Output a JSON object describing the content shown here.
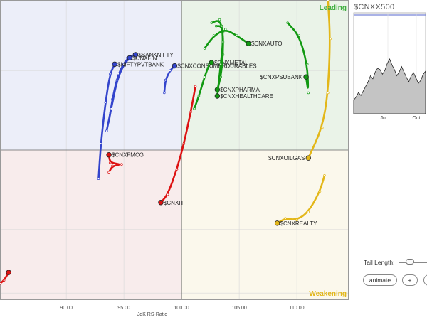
{
  "chart_data": {
    "type": "scatter",
    "xlabel": "JdK RS-Ratio",
    "xlim": [
      84.25,
      114.5
    ],
    "ylim": [
      95.28,
      104.72
    ],
    "x_ticks": [
      "90.00",
      "95.00",
      "100.00",
      "105.00",
      "110.00"
    ],
    "x_tick_values": [
      90,
      95,
      100,
      105,
      110
    ],
    "center": [
      100,
      100
    ],
    "quadrant_labels": {
      "leading": "Leading",
      "weakening": "Weakening"
    },
    "quadrant_colors": {
      "leading": "#eaf3e8",
      "weakening": "#fbf8ec",
      "lagging": "#f8ecec",
      "improving": "#eceef9"
    },
    "series": [
      {
        "name": "$BANKNIFTY",
        "color": "#3344cc",
        "points": [
          [
            93.7,
            100.9
          ],
          [
            94.0,
            101.6
          ],
          [
            94.5,
            102.4
          ],
          [
            95.3,
            102.9
          ],
          [
            96.0,
            103.0
          ]
        ]
      },
      {
        "name": "$CNXFIN",
        "color": "#3344cc",
        "points": [
          [
            93.5,
            100.6
          ],
          [
            93.9,
            101.3
          ],
          [
            94.4,
            102.2
          ],
          [
            95.0,
            102.7
          ],
          [
            95.5,
            102.9
          ]
        ]
      },
      {
        "name": "$NIFTYPVTBANK",
        "color": "#3344cc",
        "points": [
          [
            92.8,
            99.1
          ],
          [
            93.0,
            100.2
          ],
          [
            93.4,
            101.5
          ],
          [
            93.8,
            102.4
          ],
          [
            94.2,
            102.7
          ]
        ]
      },
      {
        "name": "$CNXCONSUMERDURABLES",
        "color": "#3344cc",
        "points": [
          [
            98.5,
            101.8
          ],
          [
            98.6,
            102.2
          ],
          [
            99.0,
            102.5
          ],
          [
            99.4,
            102.65
          ]
        ]
      },
      {
        "name": "$CNXFMCG",
        "color": "#dd1111",
        "points": [
          [
            93.7,
            99.3
          ],
          [
            94.0,
            99.5
          ],
          [
            94.8,
            99.55
          ],
          [
            93.8,
            99.6
          ],
          [
            93.7,
            99.85
          ]
        ]
      },
      {
        "name": "$CNXIT",
        "color": "#dd1111",
        "points": [
          [
            101.2,
            102.0
          ],
          [
            100.8,
            101.2
          ],
          [
            100.2,
            100.2
          ],
          [
            99.6,
            99.4
          ],
          [
            98.8,
            98.6
          ],
          [
            98.2,
            98.35
          ]
        ]
      },
      {
        "name": "$CNXMETAL",
        "color": "#119911",
        "points": [
          [
            101.1,
            101.3
          ],
          [
            101.5,
            101.7
          ],
          [
            102.0,
            102.3
          ],
          [
            102.4,
            102.7
          ],
          [
            102.6,
            102.75
          ]
        ]
      },
      {
        "name": "$CNXPHARMA",
        "color": "#119911",
        "points": [
          [
            102.6,
            104.0
          ],
          [
            103.3,
            104.1
          ],
          [
            103.6,
            103.7
          ],
          [
            103.6,
            103.0
          ],
          [
            103.4,
            102.3
          ],
          [
            103.1,
            101.9
          ]
        ]
      },
      {
        "name": "$CNXHEALTHCARE",
        "color": "#119911",
        "points": [
          [
            103.0,
            103.9
          ],
          [
            103.5,
            103.9
          ],
          [
            103.6,
            103.4
          ],
          [
            103.4,
            102.7
          ],
          [
            103.1,
            101.7
          ]
        ]
      },
      {
        "name": "$CNXAUTO",
        "color": "#119911",
        "points": [
          [
            102.0,
            103.2
          ],
          [
            102.8,
            103.6
          ],
          [
            103.8,
            103.8
          ],
          [
            104.8,
            103.6
          ],
          [
            105.8,
            103.35
          ]
        ]
      },
      {
        "name": "$CNXPSUBANK",
        "color": "#119911",
        "points": [
          [
            109.2,
            104.0
          ],
          [
            110.2,
            103.6
          ],
          [
            110.9,
            102.7
          ],
          [
            111.0,
            101.8
          ],
          [
            110.8,
            102.3
          ]
        ]
      },
      {
        "name": "$CNXOILGAS",
        "color": "#e3b719",
        "points": [
          [
            112.7,
            104.7
          ],
          [
            112.9,
            103.5
          ],
          [
            112.7,
            101.8
          ],
          [
            112.2,
            100.7
          ],
          [
            111.0,
            99.75
          ]
        ]
      },
      {
        "name": "$CNXREALTY",
        "color": "#e3b719",
        "points": [
          [
            112.4,
            99.2
          ],
          [
            112.0,
            98.7
          ],
          [
            111.0,
            98.05
          ],
          [
            110.0,
            97.8
          ],
          [
            109.0,
            97.85
          ],
          [
            108.3,
            97.7
          ]
        ]
      },
      {
        "name": "",
        "color": "#dd1111",
        "points": [
          [
            84.25,
            95.8
          ],
          [
            84.6,
            95.9
          ],
          [
            85.0,
            96.15
          ]
        ]
      }
    ]
  },
  "mini_chart": {
    "title": "$CNXX500",
    "x_ticks": [
      "Jul",
      "Oct"
    ],
    "values": [
      0.18,
      0.22,
      0.28,
      0.24,
      0.3,
      0.36,
      0.42,
      0.5,
      0.46,
      0.55,
      0.6,
      0.58,
      0.52,
      0.57,
      0.66,
      0.72,
      0.64,
      0.58,
      0.5,
      0.55,
      0.62,
      0.55,
      0.48,
      0.42,
      0.5,
      0.54,
      0.47,
      0.4,
      0.44,
      0.52,
      0.56
    ],
    "fill_color": "#c4c4c4"
  },
  "controls": {
    "tail_length_label": "Tail Length:",
    "tail_length_level": 0.35,
    "animate_label": "animate",
    "plus_label": "+"
  }
}
